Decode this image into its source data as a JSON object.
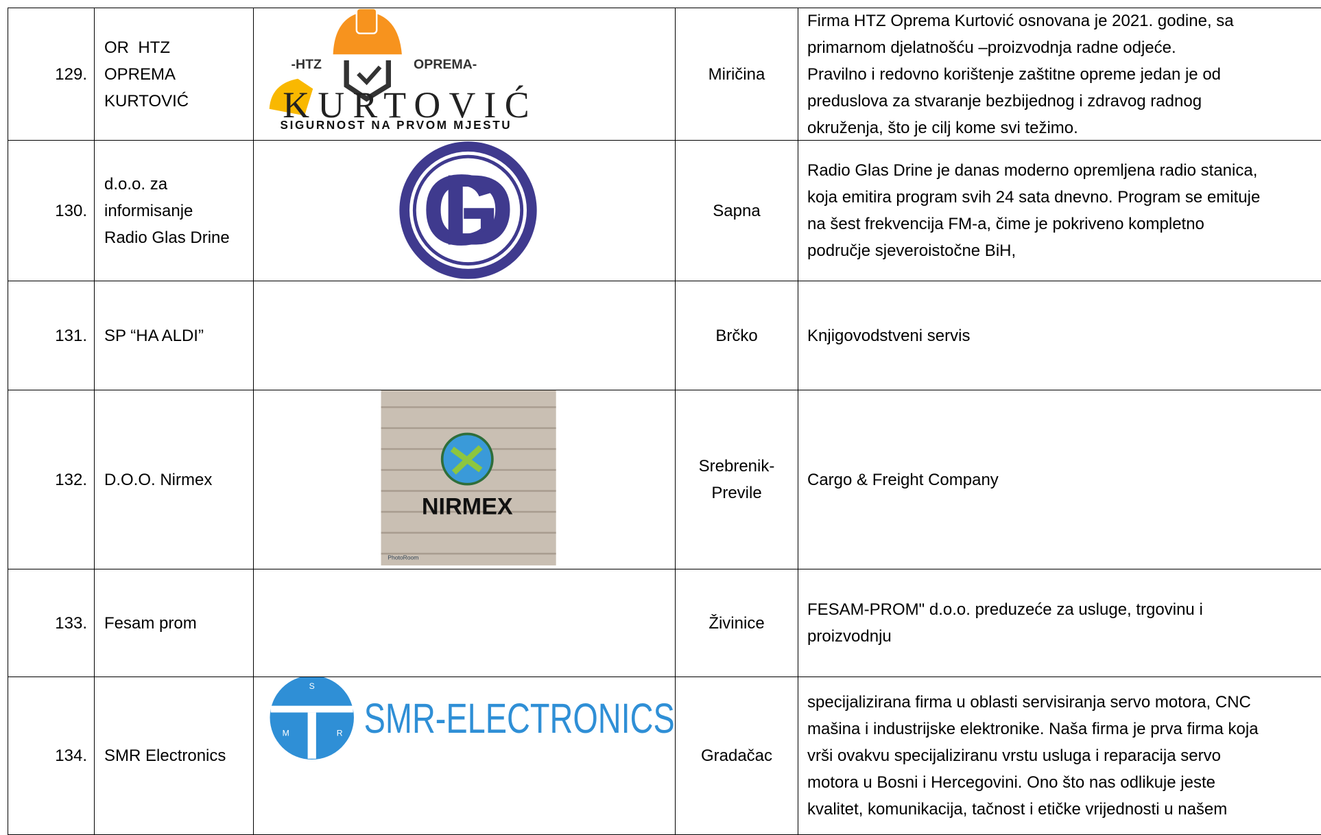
{
  "table": {
    "rows": [
      {
        "number": "129.",
        "name": "OR  HTZ\nOPREMA\nKURTOVIĆ",
        "logo": [
          "-HTZ",
          "OPREMA-",
          "KURTOVIĆ",
          "SIGURNOST NA PRVOM MJESTU"
        ],
        "place": "Miričina",
        "description": "Firma HTZ Oprema Kurtović osnovana je 2021. godine, sa\nprimarnom djelatnošću –proizvodnja radne odjeće.\nPravilno i redovno korištenje zaštitne opreme jedan je od\npreduslova za stvaranje bezbijednog i zdravog radnog\nokruženja, što je cilj kome svi težimo."
      },
      {
        "number": "130.",
        "name": "d.o.o. za\ninformisanje\nRadio Glas Drine",
        "logo": [
          "GD"
        ],
        "place": "Sapna",
        "description": "Radio Glas Drine je danas moderno opremljena radio stanica,\nkoja emitira program svih 24 sata dnevno. Program se emituje\nna šest frekvencija FM-a, čime je pokriveno kompletno\npodručje sjeveroistočne BiH,"
      },
      {
        "number": "131.",
        "name": "SP “HA ALDI”",
        "place": "Brčko",
        "description": "Knjigovodstveni servis"
      },
      {
        "number": "132.",
        "name": "D.O.O. Nirmex",
        "logo": [
          "NIRMEX",
          "PhotoRoom"
        ],
        "place": "Srebrenik-\nPrevile",
        "description": "Cargo & Freight Company"
      },
      {
        "number": "133.",
        "name": "Fesam prom",
        "place": "Živinice",
        "description": "FESAM-PROM\" d.o.o. preduzeće za usluge, trgovinu i\nproizvodnju"
      },
      {
        "number": "134.",
        "name": "SMR Electronics",
        "logo": [
          "SMR-ELECTRONICS",
          "S",
          "M",
          "R"
        ],
        "place": "Gradačac",
        "description": "specijalizirana firma u oblasti servisiranja servo motora, CNC\nmašina i industrijske elektronike. Naša firma je prva firma koja\nvrši ovakvu specijaliziranu vrstu usluga i reparacija servo\nmotora u Bosni i Hercegovini. Ono što nas odlikuje jeste\nkvalitet, komunikacija, tačnost i etičke vrijednosti u našem"
      }
    ]
  }
}
